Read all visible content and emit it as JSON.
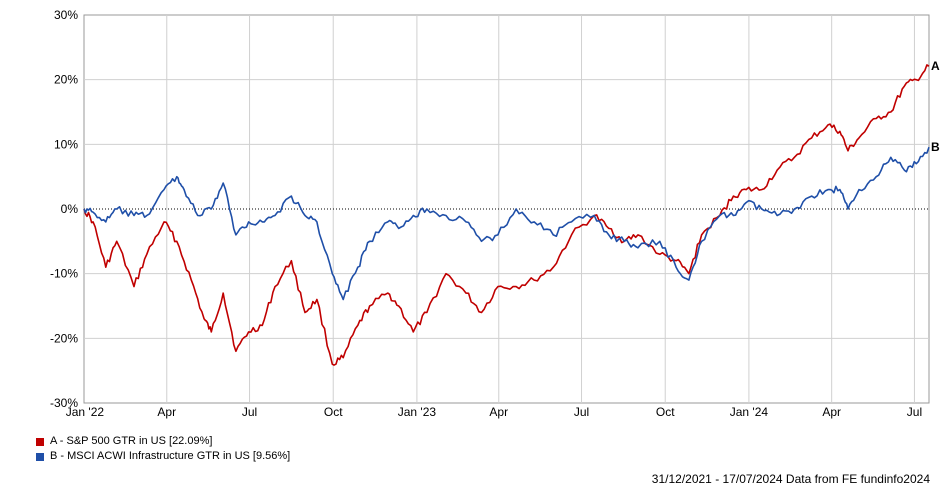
{
  "chart_data": {
    "type": "line",
    "y_ticks": [
      "30%",
      "20%",
      "10%",
      "0%",
      "-10%",
      "-20%",
      "-30%"
    ],
    "x_ticks": [
      "Jan '22",
      "Apr",
      "Jul",
      "Oct",
      "Jan '23",
      "Apr",
      "Jul",
      "Oct",
      "Jan '24",
      "Apr",
      "Jul"
    ],
    "ylim": [
      -30,
      30
    ],
    "xlim": [
      "2021-12-31",
      "2024-07-17"
    ],
    "grid": true,
    "zero_line": true,
    "series": [
      {
        "name": "A - S&P 500 GTR in US [22.09%]",
        "end_label": "A",
        "color": "#c00000",
        "points": [
          [
            "2021-12-31",
            0
          ],
          [
            "2022-01-10",
            -2
          ],
          [
            "2022-01-24",
            -9
          ],
          [
            "2022-02-05",
            -5
          ],
          [
            "2022-02-24",
            -12
          ],
          [
            "2022-03-10",
            -7
          ],
          [
            "2022-03-29",
            -2
          ],
          [
            "2022-04-12",
            -5
          ],
          [
            "2022-04-28",
            -11
          ],
          [
            "2022-05-12",
            -17
          ],
          [
            "2022-05-20",
            -19
          ],
          [
            "2022-06-02",
            -13
          ],
          [
            "2022-06-16",
            -22
          ],
          [
            "2022-06-30",
            -19
          ],
          [
            "2022-07-15",
            -18
          ],
          [
            "2022-07-29",
            -12
          ],
          [
            "2022-08-16",
            -8
          ],
          [
            "2022-08-31",
            -16
          ],
          [
            "2022-09-13",
            -14
          ],
          [
            "2022-09-30",
            -24
          ],
          [
            "2022-10-12",
            -23
          ],
          [
            "2022-10-28",
            -18
          ],
          [
            "2022-11-10",
            -15
          ],
          [
            "2022-11-30",
            -13
          ],
          [
            "2022-12-12",
            -15
          ],
          [
            "2022-12-28",
            -19
          ],
          [
            "2023-01-12",
            -16
          ],
          [
            "2023-02-02",
            -10
          ],
          [
            "2023-02-24",
            -13
          ],
          [
            "2023-03-13",
            -16
          ],
          [
            "2023-03-31",
            -12
          ],
          [
            "2023-04-20",
            -12
          ],
          [
            "2023-05-10",
            -11
          ],
          [
            "2023-05-31",
            -9
          ],
          [
            "2023-06-20",
            -4
          ],
          [
            "2023-07-15",
            -1
          ],
          [
            "2023-07-31",
            -3
          ],
          [
            "2023-08-17",
            -5
          ],
          [
            "2023-09-01",
            -4
          ],
          [
            "2023-09-25",
            -7
          ],
          [
            "2023-10-13",
            -8
          ],
          [
            "2023-10-27",
            -10
          ],
          [
            "2023-11-10",
            -4
          ],
          [
            "2023-11-30",
            -1
          ],
          [
            "2023-12-15",
            2
          ],
          [
            "2023-12-29",
            3
          ],
          [
            "2024-01-15",
            3
          ],
          [
            "2024-02-01",
            6
          ],
          [
            "2024-02-20",
            8
          ],
          [
            "2024-03-10",
            11
          ],
          [
            "2024-03-28",
            13
          ],
          [
            "2024-04-10",
            12
          ],
          [
            "2024-04-19",
            9
          ],
          [
            "2024-05-01",
            11
          ],
          [
            "2024-05-20",
            14
          ],
          [
            "2024-06-05",
            15
          ],
          [
            "2024-06-20",
            19
          ],
          [
            "2024-07-03",
            20
          ],
          [
            "2024-07-17",
            22.09
          ]
        ]
      },
      {
        "name": "B - MSCI ACWI Infrastructure GTR in US [9.56%]",
        "end_label": "B",
        "color": "#1f4fa8",
        "points": [
          [
            "2021-12-31",
            0
          ],
          [
            "2022-01-10",
            -0.5
          ],
          [
            "2022-01-24",
            -2
          ],
          [
            "2022-02-05",
            0
          ],
          [
            "2022-02-24",
            -1
          ],
          [
            "2022-03-10",
            -1
          ],
          [
            "2022-03-29",
            3
          ],
          [
            "2022-04-12",
            5
          ],
          [
            "2022-04-20",
            3
          ],
          [
            "2022-05-05",
            -1
          ],
          [
            "2022-05-20",
            0
          ],
          [
            "2022-06-02",
            4
          ],
          [
            "2022-06-16",
            -4
          ],
          [
            "2022-06-30",
            -2
          ],
          [
            "2022-07-15",
            -2
          ],
          [
            "2022-07-29",
            -1
          ],
          [
            "2022-08-16",
            2
          ],
          [
            "2022-08-31",
            -1
          ],
          [
            "2022-09-13",
            -2
          ],
          [
            "2022-09-30",
            -10
          ],
          [
            "2022-10-12",
            -14
          ],
          [
            "2022-10-28",
            -9
          ],
          [
            "2022-11-10",
            -5
          ],
          [
            "2022-11-30",
            -2
          ],
          [
            "2022-12-12",
            -3
          ],
          [
            "2022-12-28",
            -1
          ],
          [
            "2023-01-12",
            0
          ],
          [
            "2023-02-02",
            -1
          ],
          [
            "2023-02-24",
            -2
          ],
          [
            "2023-03-13",
            -5
          ],
          [
            "2023-03-31",
            -4
          ],
          [
            "2023-04-20",
            0
          ],
          [
            "2023-05-10",
            -2
          ],
          [
            "2023-05-31",
            -4
          ],
          [
            "2023-06-20",
            -2
          ],
          [
            "2023-07-15",
            -1
          ],
          [
            "2023-07-31",
            -4
          ],
          [
            "2023-08-17",
            -5
          ],
          [
            "2023-09-01",
            -6
          ],
          [
            "2023-09-25",
            -5
          ],
          [
            "2023-10-13",
            -9
          ],
          [
            "2023-10-27",
            -11
          ],
          [
            "2023-11-10",
            -5
          ],
          [
            "2023-11-30",
            -1
          ],
          [
            "2023-12-15",
            -1
          ],
          [
            "2023-12-29",
            1
          ],
          [
            "2024-01-15",
            0
          ],
          [
            "2024-02-01",
            -1
          ],
          [
            "2024-02-20",
            0
          ],
          [
            "2024-03-10",
            2
          ],
          [
            "2024-03-28",
            3
          ],
          [
            "2024-04-10",
            3
          ],
          [
            "2024-04-19",
            0
          ],
          [
            "2024-05-01",
            3
          ],
          [
            "2024-05-20",
            5
          ],
          [
            "2024-06-05",
            8
          ],
          [
            "2024-06-20",
            6
          ],
          [
            "2024-07-03",
            7
          ],
          [
            "2024-07-17",
            9.56
          ]
        ]
      }
    ]
  },
  "footer": "31/12/2021 - 17/07/2024 Data from FE fundinfo2024"
}
